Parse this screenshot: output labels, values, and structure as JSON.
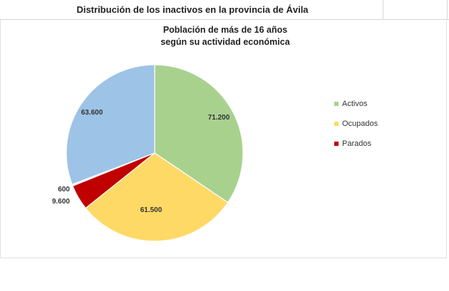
{
  "header": {
    "title": "Distribución de los inactivos en la provincia de Ávila"
  },
  "chart_data": {
    "type": "pie",
    "title_lines": [
      "Población de más de 16 años",
      "según su actividad económica"
    ],
    "slices": [
      {
        "label": "Activos",
        "value": 71200,
        "display": "71.200",
        "color": "#a9d18e"
      },
      {
        "label": "Ocupados",
        "value": 61500,
        "display": "61.500",
        "color": "#ffd966"
      },
      {
        "label": "Parados",
        "value": 9600,
        "display": "9.600",
        "color": "#c00000"
      },
      {
        "label": "",
        "value": 600,
        "display": "600",
        "color": "#f2dcdb"
      },
      {
        "label": "",
        "value": 63600,
        "display": "63.600",
        "color": "#9dc3e6"
      }
    ],
    "legend": {
      "placement": "right",
      "entries": [
        {
          "label": "Activos",
          "color": "#a9d18e"
        },
        {
          "label": "Ocupados",
          "color": "#ffd966"
        },
        {
          "label": "Parados",
          "color": "#c00000"
        }
      ]
    }
  }
}
